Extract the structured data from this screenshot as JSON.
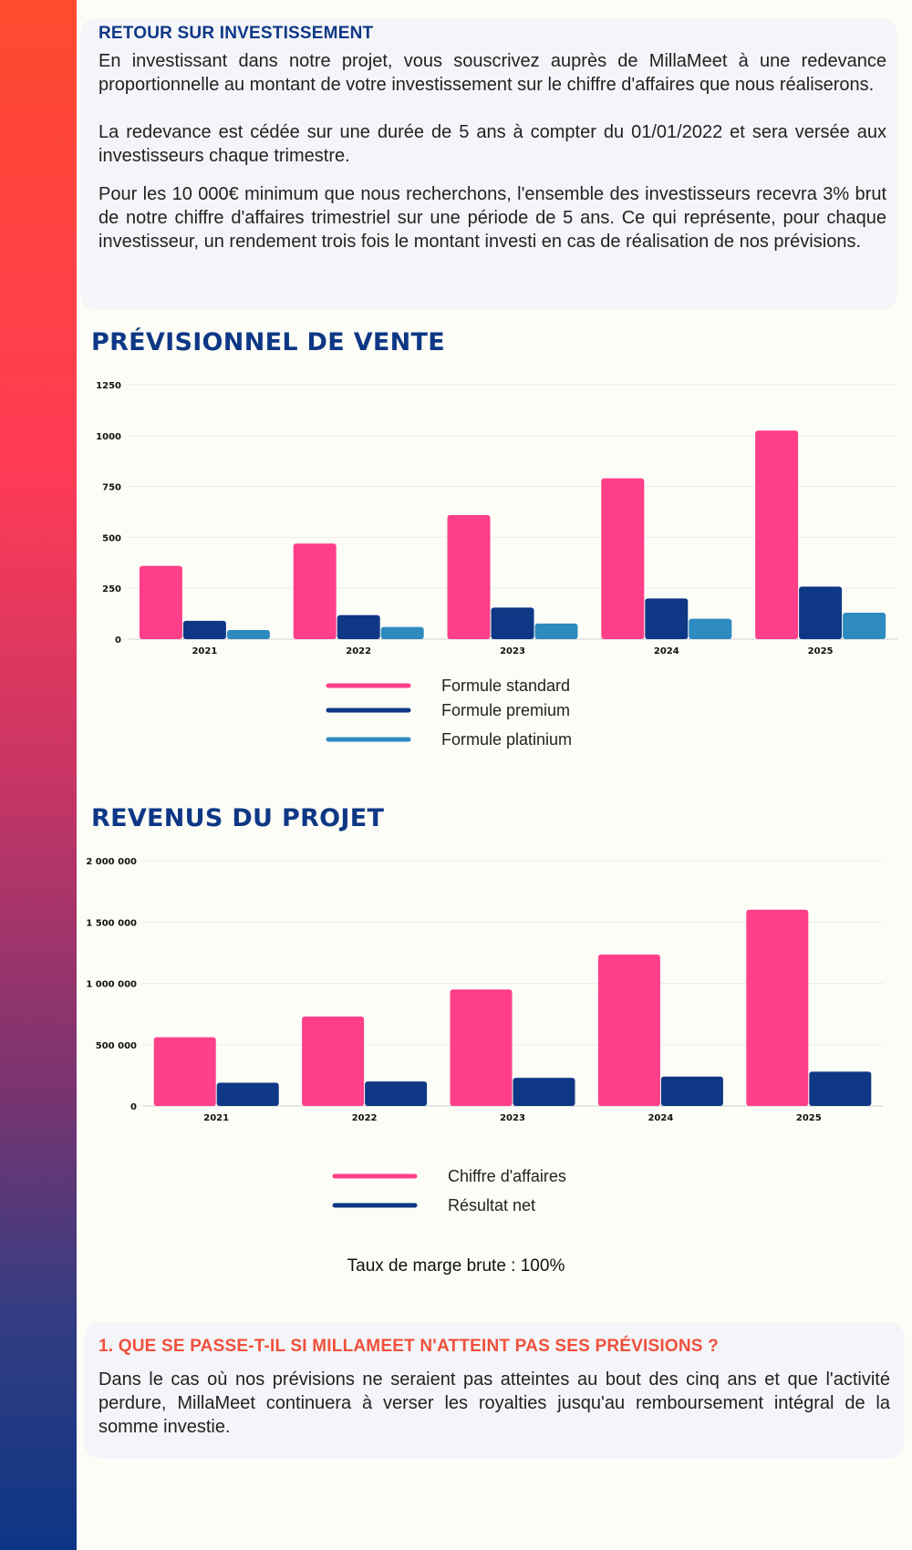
{
  "roi": {
    "title": "RETOUR SUR INVESTISSEMENT",
    "p1": "En investissant dans notre projet, vous souscrivez auprès de MillaMeet à une redevance proportionnelle au montant de votre investissement sur le chiffre d'affaires que nous réaliserons.",
    "p2": "La redevance est cédée sur une durée de 5 ans à compter du 01/01/2022 et sera versée aux investisseurs chaque trimestre.",
    "p3": "Pour les 10 000€ minimum que nous recherchons, l'ensemble des investisseurs recevra 3% brut de notre chiffre d'affaires trimestriel sur une période de 5 ans. Ce qui représente, pour chaque investisseur, un rendement trois fois le montant investi en cas de réalisation de nos prévisions."
  },
  "chart_data": [
    {
      "type": "bar",
      "title": "PRÉVISIONNEL DE VENTE",
      "categories": [
        "2021",
        "2022",
        "2023",
        "2024",
        "2025"
      ],
      "series": [
        {
          "name": "Formule standard",
          "values": [
            360,
            470,
            610,
            790,
            1025
          ],
          "color": "#ff3f8a"
        },
        {
          "name": "Formule premium",
          "values": [
            90,
            118,
            155,
            200,
            258
          ],
          "color": "#0e3886"
        },
        {
          "name": "Formule platinium",
          "values": [
            45,
            60,
            77,
            100,
            130
          ],
          "color": "#2e8bc0"
        }
      ],
      "yticks": [
        "0",
        "250",
        "500",
        "750",
        "1000",
        "1250"
      ],
      "ylim": [
        0,
        1250
      ],
      "grid": true,
      "legend": "bottom-center"
    },
    {
      "type": "bar",
      "title": "REVENUS DU PROJET",
      "categories": [
        "2021",
        "2022",
        "2023",
        "2024",
        "2025"
      ],
      "series": [
        {
          "name": "Chiffre d'affaires",
          "values": [
            560000,
            730000,
            950000,
            1235000,
            1600000
          ],
          "color": "#ff3f8a"
        },
        {
          "name": "Résultat net",
          "values": [
            190000,
            200000,
            230000,
            240000,
            280000
          ],
          "color": "#0e3886"
        }
      ],
      "yticks": [
        "0",
        "500 000",
        "1 000 000",
        "1 500 000",
        "2 000 000"
      ],
      "ylim": [
        0,
        2000000
      ],
      "grid": true,
      "legend": "bottom-center"
    }
  ],
  "marge": "Taux de marge brute : 100%",
  "faq": {
    "title": "1. QUE SE PASSE-T-IL SI MILLAMEET N'ATTEINT PAS SES PRÉVISIONS ?",
    "text": "Dans le cas où nos prévisions ne seraient pas atteintes au bout des cinq ans et que l'activité perdure, MillaMeet continuera à verser les royalties jusqu'au remboursement intégral de la somme investie."
  }
}
